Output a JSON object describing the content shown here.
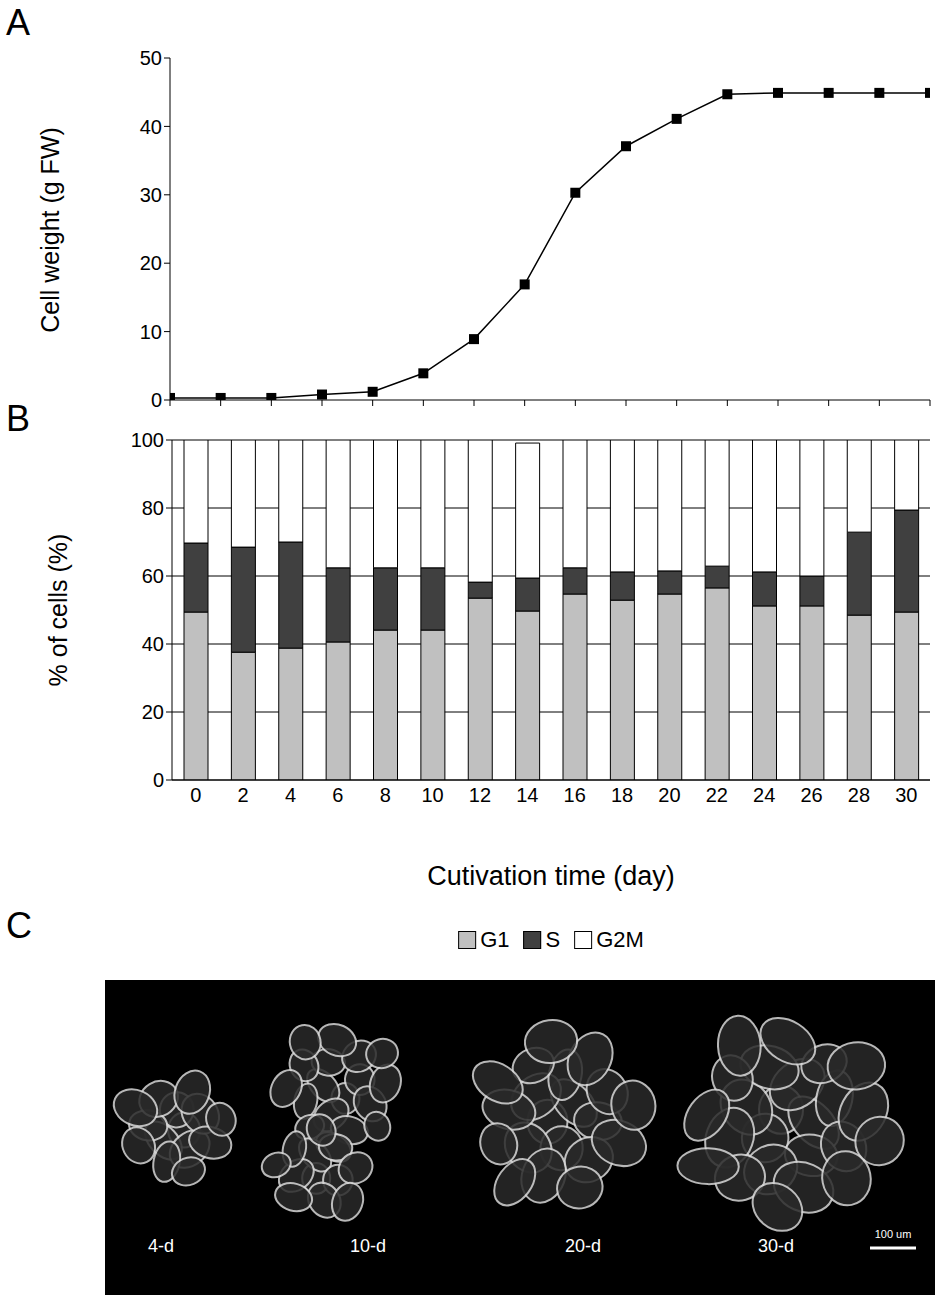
{
  "chart_data": [
    {
      "panel_label": "A",
      "type": "line",
      "y_label": "Cell weight (g FW)",
      "x": [
        0,
        2,
        4,
        6,
        8,
        10,
        12,
        14,
        16,
        18,
        20,
        22,
        24,
        26,
        28,
        30
      ],
      "values": [
        0.3,
        0.3,
        0.3,
        0.8,
        1.2,
        3.9,
        8.9,
        16.9,
        30.3,
        37.1,
        41.1,
        44.7,
        44.9,
        44.9,
        44.9,
        44.9
      ],
      "color": "#000000",
      "marker": "square",
      "xlim": [
        0,
        30
      ],
      "xticks": [
        0,
        2,
        4,
        6,
        8,
        10,
        12,
        14,
        16,
        18,
        20,
        22,
        24,
        26,
        28,
        30
      ],
      "ylim": [
        0,
        50
      ],
      "yticks": [
        0,
        10,
        20,
        30,
        40,
        50
      ],
      "tick_labels": "y",
      "grid": false
    },
    {
      "panel_label": "B",
      "type": "bar",
      "stacked": true,
      "x_label": "Cutivation time (day)",
      "y_label": "% of cells (%)",
      "categories": [
        "0",
        "2",
        "4",
        "6",
        "8",
        "10",
        "12",
        "14",
        "16",
        "18",
        "20",
        "22",
        "24",
        "26",
        "28",
        "30"
      ],
      "series": [
        {
          "name": "G1",
          "color": "#c0c0c0",
          "values": [
            49.4,
            37.6,
            38.8,
            40.6,
            44.1,
            44.1,
            53.5,
            49.7,
            54.7,
            52.9,
            54.7,
            56.5,
            51.2,
            51.2,
            48.5,
            49.4
          ]
        },
        {
          "name": "S",
          "color": "#404040",
          "values": [
            20.3,
            30.9,
            31.2,
            21.8,
            18.3,
            18.3,
            4.7,
            9.7,
            7.7,
            8.3,
            6.8,
            6.4,
            10.0,
            8.8,
            24.4,
            30.0
          ]
        },
        {
          "name": "G2M",
          "color": "#ffffff",
          "values": [
            30.3,
            31.5,
            30.0,
            37.6,
            37.6,
            37.6,
            41.8,
            39.7,
            37.6,
            38.8,
            38.5,
            37.1,
            38.8,
            40.0,
            27.1,
            20.6
          ]
        }
      ],
      "ylim": [
        0,
        100
      ],
      "yticks": [
        0,
        20,
        40,
        60,
        80,
        100
      ],
      "grid": true,
      "legend": "bottom"
    }
  ],
  "image_panel": {
    "panel_label": "C",
    "captions": [
      "4-d",
      "10-d",
      "20-d",
      "30-d"
    ],
    "scale_bar": "100 um"
  }
}
